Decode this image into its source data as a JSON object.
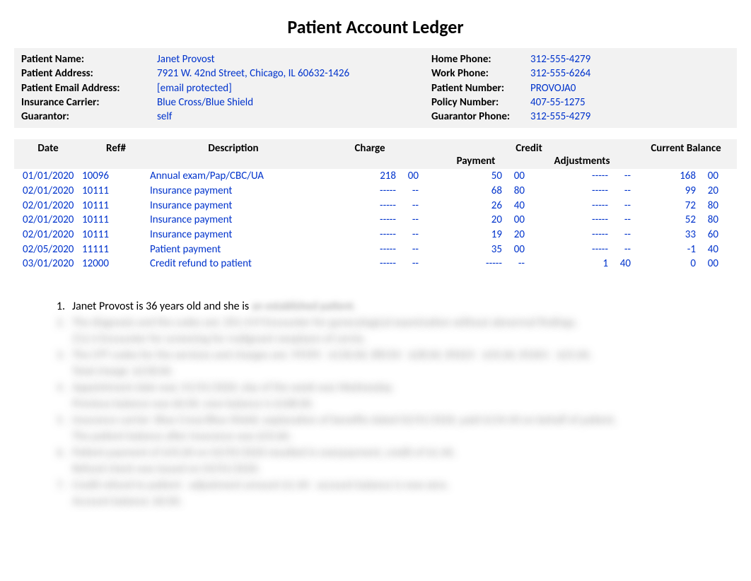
{
  "title": "Patient Account Ledger",
  "colors": {
    "value_text": "#0033cc",
    "header_bg": "#f2f2f2",
    "body_text": "#000000",
    "background": "#ffffff"
  },
  "patient": {
    "name_label": "Patient Name:",
    "name": "Janet Provost",
    "address_label": "Patient Address:",
    "address": "7921 W. 42nd Street, Chicago, IL 60632-1426",
    "email_label": "Patient Email Address:",
    "email": "[email protected]",
    "carrier_label": "Insurance Carrier:",
    "carrier": "Blue Cross/Blue Shield",
    "guarantor_label": "Guarantor:",
    "guarantor": "self",
    "home_phone_label": "Home Phone:",
    "home_phone": "312-555-4279",
    "work_phone_label": "Work Phone:",
    "work_phone": "312-555-6264",
    "patient_number_label": "Patient Number:",
    "patient_number": "PROVOJA0",
    "policy_number_label": "Policy Number:",
    "policy_number": "407-55-1275",
    "guarantor_phone_label": "Guarantor Phone:",
    "guarantor_phone": "312-555-4279"
  },
  "ledger": {
    "headers": {
      "date": "Date",
      "ref": "Ref#",
      "description": "Description",
      "charge": "Charge",
      "credit": "Credit",
      "payment": "Payment",
      "adjustments": "Adjustments",
      "balance": "Current Balance"
    },
    "rows": [
      {
        "date": "01/01/2020",
        "ref": "10096",
        "desc": "Annual exam/Pap/CBC/UA",
        "charge_d": "218",
        "charge_c": "00",
        "pay_d": "50",
        "pay_c": "00",
        "adj_d": "-----",
        "adj_c": "--",
        "bal_d": "168",
        "bal_c": "00"
      },
      {
        "date": "02/01/2020",
        "ref": "10111",
        "desc": "Insurance payment",
        "charge_d": "-----",
        "charge_c": "--",
        "pay_d": "68",
        "pay_c": "80",
        "adj_d": "-----",
        "adj_c": "--",
        "bal_d": "99",
        "bal_c": "20"
      },
      {
        "date": "02/01/2020",
        "ref": "10111",
        "desc": "Insurance payment",
        "charge_d": "-----",
        "charge_c": "--",
        "pay_d": "26",
        "pay_c": "40",
        "adj_d": "-----",
        "adj_c": "--",
        "bal_d": "72",
        "bal_c": "80"
      },
      {
        "date": "02/01/2020",
        "ref": "10111",
        "desc": "Insurance payment",
        "charge_d": "-----",
        "charge_c": "--",
        "pay_d": "20",
        "pay_c": "00",
        "adj_d": "-----",
        "adj_c": "--",
        "bal_d": "52",
        "bal_c": "80"
      },
      {
        "date": "02/01/2020",
        "ref": "10111",
        "desc": "Insurance payment",
        "charge_d": "-----",
        "charge_c": "--",
        "pay_d": "19",
        "pay_c": "20",
        "adj_d": "-----",
        "adj_c": "--",
        "bal_d": "33",
        "bal_c": "60"
      },
      {
        "date": "02/05/2020",
        "ref": "11111",
        "desc": "Patient payment",
        "charge_d": "-----",
        "charge_c": "--",
        "pay_d": "35",
        "pay_c": "00",
        "adj_d": "-----",
        "adj_c": "--",
        "bal_d": "-1",
        "bal_c": "40"
      },
      {
        "date": "03/01/2020",
        "ref": "12000",
        "desc": "Credit refund to patient",
        "charge_d": "-----",
        "charge_c": "--",
        "pay_d": "-----",
        "pay_c": "--",
        "adj_d": "1",
        "adj_c": "40",
        "bal_d": "0",
        "bal_c": "00"
      }
    ]
  },
  "questions": {
    "q1_number": "1.",
    "q1_visible": "Janet Provost is 36 years old and she is",
    "q1_hidden": "an established patient.",
    "hidden_lines": [
      {
        "num": "2.",
        "text": "The diagnosis and the codes are: Z01.419 Encounter for gynecological examination without abnormal findings."
      },
      {
        "num": "",
        "text": "Z12.4 Encounter for screening for malignant neoplasm of cervix."
      },
      {
        "num": "3.",
        "text": "The CPT codes for the services and charges are: 99395 - $130.00, 88150 - $28.00, 85025 - $35.00, 81001 - $25.00."
      },
      {
        "num": "",
        "text": "Total charge: $218.00."
      },
      {
        "num": "4.",
        "text": "Appointment date was: 01/01/2020, day of the week was Wednesday."
      },
      {
        "num": "",
        "text": "Previous balance was $0.00, new balance is $168.00."
      },
      {
        "num": "5.",
        "text": "Insurance carrier: Blue Cross/Blue Shield, explanation of benefits dated 02/01/2020, paid $134.40 on behalf of patient."
      },
      {
        "num": "",
        "text": "The patient balance after insurance was $33.60."
      },
      {
        "num": "6.",
        "text": "Patient payment of $35.00 on 02/05/2020 resulted in overpayment, credit of $1.40."
      },
      {
        "num": "",
        "text": "Refund check was issued on 03/01/2020."
      },
      {
        "num": "7.",
        "text": "Credit refund to patient - adjustment amount $1.40 - account balance is now zero."
      },
      {
        "num": "",
        "text": "Account balance: $0.00."
      }
    ]
  }
}
